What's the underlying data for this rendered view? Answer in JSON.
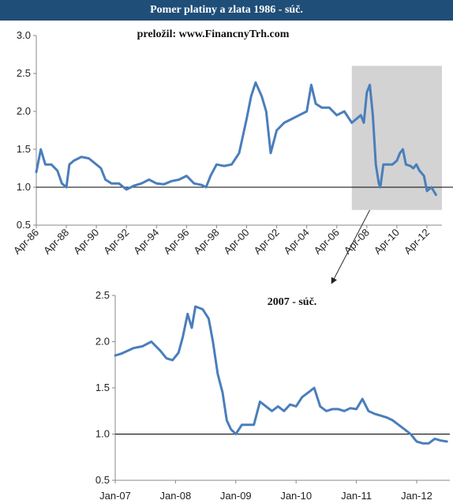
{
  "header": {
    "title": "Pomer platiny a zlata 1986 - súč."
  },
  "colors": {
    "line": "#4a7ebb",
    "header_bg": "#1f4e79",
    "highlight": "#d3d3d3",
    "reference": "#000000"
  },
  "chart_data": [
    {
      "type": "line",
      "annotation": "preložil: www.FinancnyTrh.com",
      "ylim": [
        0.5,
        3.0
      ],
      "yticks": [
        "0.5",
        "1.0",
        "1.5",
        "2.0",
        "2.5",
        "3.0"
      ],
      "xlim": [
        1986.0,
        2013.0
      ],
      "xticks": [
        "Apr-86",
        "Apr-88",
        "Apr-90",
        "Apr-92",
        "Apr-94",
        "Apr-96",
        "Apr-98",
        "Apr-00",
        "Apr-02",
        "Apr-04",
        "Apr-06",
        "Apr-08",
        "Apr-10",
        "Apr-12"
      ],
      "reference_line": 1.0,
      "highlight_range": {
        "x": [
          2007.0,
          2013.0
        ],
        "y": [
          0.7,
          2.6
        ]
      },
      "series": [
        {
          "x": [
            1986.0,
            1986.3,
            1986.6,
            1987.0,
            1987.4,
            1987.7,
            1988.0,
            1988.2,
            1988.5,
            1989.0,
            1989.5,
            1990.0,
            1990.3,
            1990.6,
            1991.0,
            1991.5,
            1992.0,
            1992.5,
            1993.0,
            1993.5,
            1994.0,
            1994.5,
            1995.0,
            1995.5,
            1996.0,
            1996.5,
            1997.0,
            1997.3,
            1997.6,
            1998.0,
            1998.5,
            1999.0,
            1999.5,
            2000.0,
            2000.3,
            2000.6,
            2001.0,
            2001.3,
            2001.6,
            2001.8,
            2002.0,
            2002.5,
            2003.0,
            2003.5,
            2004.0,
            2004.3,
            2004.6,
            2005.0,
            2005.5,
            2006.0,
            2006.5,
            2007.0,
            2007.3,
            2007.6,
            2007.8,
            2008.0,
            2008.2,
            2008.4,
            2008.6,
            2008.8,
            2008.9,
            2009.1,
            2009.4,
            2009.7,
            2010.0,
            2010.2,
            2010.4,
            2010.6,
            2010.9,
            2011.1,
            2011.3,
            2011.5,
            2011.8,
            2012.0,
            2012.3,
            2012.6
          ],
          "values": [
            1.2,
            1.5,
            1.3,
            1.3,
            1.22,
            1.05,
            1.0,
            1.3,
            1.35,
            1.4,
            1.38,
            1.3,
            1.25,
            1.1,
            1.05,
            1.05,
            0.97,
            1.02,
            1.05,
            1.1,
            1.05,
            1.04,
            1.08,
            1.1,
            1.15,
            1.05,
            1.03,
            1.0,
            1.15,
            1.3,
            1.28,
            1.3,
            1.45,
            1.9,
            2.2,
            2.38,
            2.2,
            2.0,
            1.45,
            1.6,
            1.75,
            1.85,
            1.9,
            1.95,
            2.0,
            2.35,
            2.1,
            2.05,
            2.05,
            1.95,
            2.0,
            1.85,
            1.9,
            1.95,
            1.85,
            2.25,
            2.35,
            1.95,
            1.3,
            1.05,
            1.0,
            1.3,
            1.3,
            1.3,
            1.35,
            1.45,
            1.5,
            1.3,
            1.28,
            1.25,
            1.3,
            1.22,
            1.15,
            0.95,
            1.0,
            0.9
          ]
        }
      ]
    },
    {
      "type": "line",
      "annotation": "2007 - súč.",
      "ylim": [
        0.5,
        2.5
      ],
      "yticks": [
        "0.5",
        "1.0",
        "1.5",
        "2.0",
        "2.5"
      ],
      "xlim": [
        2007.0,
        2012.55
      ],
      "xticks": [
        "Jan-07",
        "Jan-08",
        "Jan-09",
        "Jan-10",
        "Jan-11",
        "Jan-12"
      ],
      "reference_line": 1.0,
      "series": [
        {
          "x": [
            2007.0,
            2007.1,
            2007.3,
            2007.45,
            2007.6,
            2007.75,
            2007.85,
            2007.95,
            2008.05,
            2008.12,
            2008.2,
            2008.27,
            2008.33,
            2008.45,
            2008.55,
            2008.62,
            2008.7,
            2008.78,
            2008.85,
            2008.92,
            2009.0,
            2009.1,
            2009.2,
            2009.3,
            2009.4,
            2009.5,
            2009.6,
            2009.7,
            2009.8,
            2009.9,
            2010.0,
            2010.1,
            2010.2,
            2010.3,
            2010.4,
            2010.5,
            2010.6,
            2010.7,
            2010.8,
            2010.9,
            2011.0,
            2011.1,
            2011.2,
            2011.3,
            2011.4,
            2011.5,
            2011.6,
            2011.7,
            2011.8,
            2011.9,
            2012.0,
            2012.1,
            2012.2,
            2012.3,
            2012.4,
            2012.5
          ],
          "values": [
            1.85,
            1.87,
            1.93,
            1.95,
            2.0,
            1.9,
            1.82,
            1.8,
            1.88,
            2.05,
            2.3,
            2.15,
            2.38,
            2.35,
            2.25,
            2.0,
            1.65,
            1.45,
            1.15,
            1.05,
            1.0,
            1.1,
            1.1,
            1.1,
            1.35,
            1.3,
            1.25,
            1.3,
            1.25,
            1.32,
            1.3,
            1.4,
            1.45,
            1.5,
            1.3,
            1.25,
            1.27,
            1.27,
            1.25,
            1.28,
            1.27,
            1.38,
            1.25,
            1.22,
            1.2,
            1.18,
            1.15,
            1.1,
            1.05,
            1.0,
            0.92,
            0.9,
            0.9,
            0.95,
            0.93,
            0.92
          ]
        }
      ]
    }
  ]
}
